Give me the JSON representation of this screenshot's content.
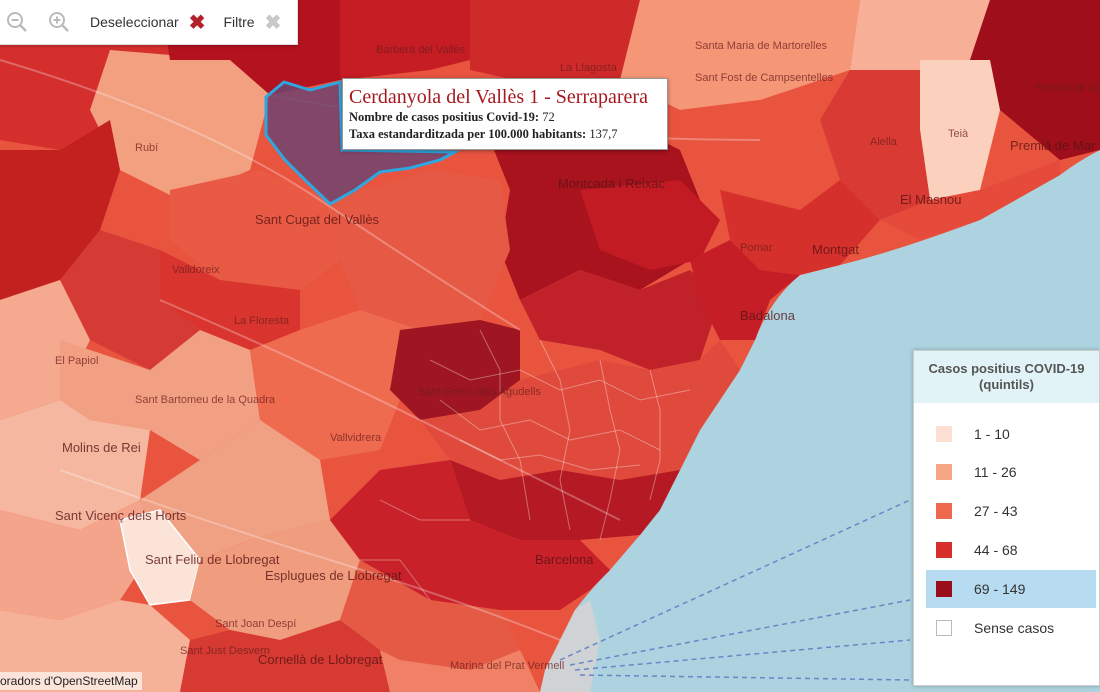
{
  "toolbar": {
    "zoom_out_icon": "zoom-out-icon",
    "zoom_in_icon": "zoom-in-icon",
    "deselect_label": "Deseleccionar",
    "filter_label": "Filtre"
  },
  "tooltip": {
    "title": "Cerdanyola del Vallès 1 - Serraparera",
    "cases_label": "Nombre de casos positius Covid-19:",
    "cases_value": "72",
    "rate_label": "Taxa estandarditzada per 100.000 habitants:",
    "rate_value": "137,7"
  },
  "legend": {
    "title": "Casos positius COVID-19 (quintils)",
    "items": [
      {
        "label": "1 - 10",
        "color": "#fde0d3"
      },
      {
        "label": "11 - 26",
        "color": "#f7a587"
      },
      {
        "label": "27 - 43",
        "color": "#ee6a4e"
      },
      {
        "label": "44 - 68",
        "color": "#d82e2c"
      },
      {
        "label": "69 - 149",
        "color": "#9a0d1b"
      },
      {
        "label": "Sense casos",
        "color": "#ffffff"
      }
    ],
    "selected_index": 4
  },
  "attribution": "oradors d'OpenStreetMap",
  "places": [
    "Barberà del Vallès",
    "Santa Maria de Martorelles",
    "Sant Fost de Campsentelles",
    "Premià de Dalt",
    "Premià de Mar",
    "Teià",
    "Alella",
    "Rubí",
    "Montcada i Reixac",
    "Sant Cugat del Vallès",
    "Valldoreix",
    "La Floresta",
    "Pomar",
    "Montgat",
    "Badalona",
    "El Masnou",
    "Sant Genís dels Agudells",
    "Vallvidrera",
    "Molins de Rei",
    "Sant Vicenç dels Horts",
    "Sant Feliu de Llobregat",
    "Esplugues de Llobregat",
    "Sant Just Desvern",
    "Cornellà de Llobregat",
    "Barcelona",
    "Sant Joan Despí",
    "La Llagosta",
    "Marina del Prat Vermell",
    "Sant Bartomeu de la Quadra",
    "El Papiol"
  ]
}
